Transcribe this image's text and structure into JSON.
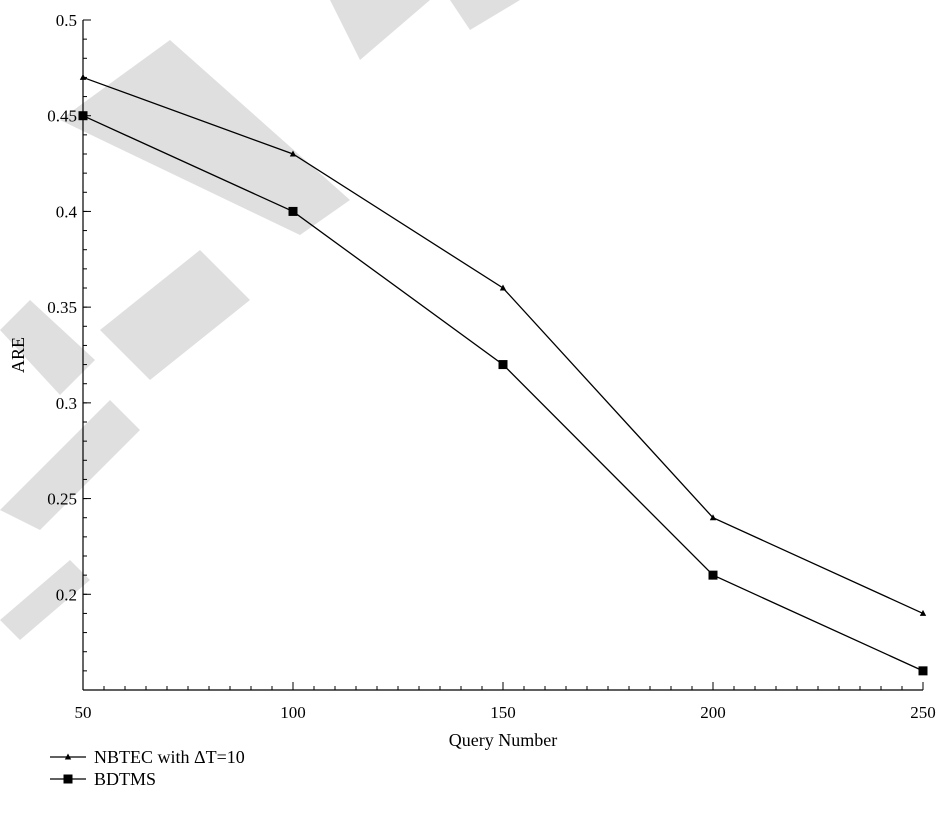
{
  "chart_data": {
    "type": "line",
    "xlabel": "Query Number",
    "ylabel": "ARE",
    "x": [
      50,
      100,
      150,
      200,
      250
    ],
    "xlim": [
      50,
      250
    ],
    "ylim": [
      0.15,
      0.5
    ],
    "x_ticks": [
      "50",
      "100",
      "150",
      "200",
      "250"
    ],
    "y_ticks": [
      "0.2",
      "0.25",
      "0.3",
      "0.35",
      "0.4",
      "0.45",
      "0.5"
    ],
    "grid": false,
    "legend_position": "bottom-left",
    "series": [
      {
        "name": "NBTEC with ΔT=10",
        "marker": "triangle",
        "values": [
          0.47,
          0.43,
          0.36,
          0.24,
          0.19
        ]
      },
      {
        "name": "BDTMS",
        "marker": "square",
        "values": [
          0.45,
          0.4,
          0.32,
          0.21,
          0.16
        ]
      }
    ],
    "colors": {
      "line": "#000000",
      "watermark": "#d9d9d9"
    }
  }
}
